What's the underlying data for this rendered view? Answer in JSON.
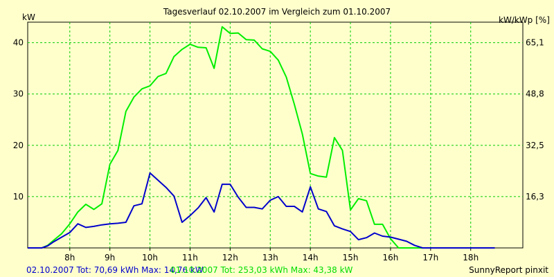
{
  "chart_data": {
    "type": "line",
    "title": "Tagesverlauf 02.10.2007 im Vergleich zum 01.10.2007",
    "ylabel_left": "kW",
    "ylabel_right": "kW/kWp [%]",
    "x_ticks": [
      "8h",
      "9h",
      "10h",
      "11h",
      "12h",
      "13h",
      "14h",
      "15h",
      "16h",
      "17h",
      "18h"
    ],
    "x_tick_hours": [
      8,
      9,
      10,
      11,
      12,
      13,
      14,
      15,
      16,
      17,
      18
    ],
    "xlim": [
      6.95,
      19.3
    ],
    "ylim": [
      0,
      44
    ],
    "y_ticks_left": [
      "10",
      "20",
      "30",
      "40"
    ],
    "y_ticks_left_values": [
      10,
      20,
      30,
      40
    ],
    "y_ticks_right": [
      "16,3",
      "32,5",
      "48,8",
      "65,1"
    ],
    "grid": true,
    "colors": {
      "background": "#ffffcc",
      "grid": "#00cc00",
      "series_1": "#0000cc",
      "series_2": "#00ee00"
    },
    "series": [
      {
        "name": "02.10.2007",
        "color": "#0000cc",
        "x": [
          6.95,
          7.3,
          7.45,
          7.6,
          7.8,
          8.0,
          8.2,
          8.4,
          8.6,
          8.8,
          9.0,
          9.2,
          9.4,
          9.6,
          9.8,
          10.0,
          10.2,
          10.4,
          10.6,
          10.8,
          11.0,
          11.2,
          11.4,
          11.6,
          11.8,
          12.0,
          12.2,
          12.4,
          12.6,
          12.8,
          13.0,
          13.2,
          13.4,
          13.6,
          13.8,
          14.0,
          14.2,
          14.4,
          14.6,
          14.8,
          15.0,
          15.2,
          15.4,
          15.6,
          15.8,
          16.0,
          16.2,
          16.4,
          16.6,
          16.8,
          17.0,
          17.2,
          17.4,
          17.6,
          17.8,
          18.0,
          18.2,
          18.4,
          18.6
        ],
        "y": [
          0,
          0,
          0.4,
          1.2,
          2.1,
          3.0,
          4.7,
          4.0,
          4.2,
          4.5,
          4.7,
          4.8,
          5.0,
          8.2,
          8.6,
          14.6,
          13.2,
          11.8,
          10.1,
          5.0,
          6.3,
          7.8,
          9.8,
          7.0,
          12.4,
          12.4,
          9.9,
          7.9,
          7.9,
          7.6,
          9.3,
          10.0,
          8.1,
          8.1,
          7.0,
          11.9,
          7.6,
          7.1,
          4.3,
          3.7,
          3.2,
          1.6,
          2.0,
          2.9,
          2.3,
          2.1,
          1.7,
          1.3,
          0.5,
          0,
          0,
          0,
          0,
          0,
          0,
          0,
          0,
          0,
          0
        ]
      },
      {
        "name": "01.10.2007",
        "color": "#00ee00",
        "x": [
          6.95,
          7.3,
          7.45,
          7.6,
          7.8,
          8.0,
          8.2,
          8.4,
          8.6,
          8.8,
          9.0,
          9.2,
          9.4,
          9.6,
          9.8,
          10.0,
          10.2,
          10.4,
          10.6,
          10.8,
          11.0,
          11.2,
          11.4,
          11.6,
          11.8,
          12.0,
          12.2,
          12.4,
          12.6,
          12.8,
          13.0,
          13.2,
          13.4,
          13.6,
          13.8,
          14.0,
          14.2,
          14.4,
          14.6,
          14.8,
          15.0,
          15.2,
          15.4,
          15.6,
          15.8,
          16.0,
          16.2,
          16.4,
          16.6,
          16.8,
          17.0,
          17.2,
          17.4,
          17.6,
          17.8,
          18.0,
          18.2,
          18.4,
          18.6
        ],
        "y": [
          0,
          0,
          0.5,
          1.5,
          2.8,
          4.7,
          7.0,
          8.5,
          7.5,
          8.6,
          16.3,
          19.0,
          26.6,
          29.4,
          31.0,
          31.6,
          33.4,
          34.0,
          37.3,
          38.7,
          39.7,
          39.1,
          39.0,
          35.0,
          43.1,
          41.8,
          41.9,
          40.6,
          40.5,
          38.8,
          38.3,
          36.6,
          33.3,
          28.0,
          22.2,
          14.5,
          14.0,
          13.8,
          21.5,
          19.0,
          7.4,
          9.6,
          9.2,
          4.6,
          4.6,
          1.8,
          0,
          0,
          0,
          0,
          0,
          0,
          0,
          0,
          0,
          0,
          0,
          0,
          0
        ]
      }
    ]
  },
  "footer": {
    "s1_text": "02.10.2007 Tot: 70,69 kWh Max: 14,76 kW",
    "s2_text": "01.10.2007 Tot: 253,03 kWh Max: 43,38 kW",
    "brand": "SunnyReport pinxit"
  }
}
